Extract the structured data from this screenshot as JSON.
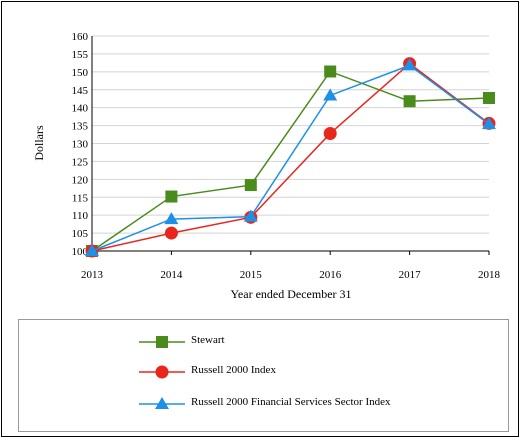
{
  "chart_data": {
    "type": "line",
    "x": [
      "2013",
      "2014",
      "2015",
      "2016",
      "2017",
      "2018"
    ],
    "xlabel": "Year ended December 31",
    "ylabel": "Dollars",
    "ylim": [
      100,
      160
    ],
    "yticks": [
      "100",
      "105",
      "110",
      "115",
      "120",
      "125",
      "130",
      "135",
      "140",
      "145",
      "150",
      "155",
      "160"
    ],
    "grid": "horizontal",
    "legend_position": "bottom",
    "series": [
      {
        "name": "Stewart",
        "values": [
          100,
          115.2,
          118.4,
          150.1,
          141.8,
          142.7
        ],
        "color": "#4a8c1c",
        "marker": "square"
      },
      {
        "name": "Russell 2000 Index",
        "values": [
          100,
          105,
          109.4,
          132.8,
          152.3,
          135.6
        ],
        "color": "#e8261c",
        "marker": "circle"
      },
      {
        "name": "Russell 2000 Financial Services Sector Index",
        "values": [
          100,
          108.9,
          109.6,
          143.4,
          151.8,
          135.4
        ],
        "color": "#1e90e6",
        "marker": "triangle"
      }
    ]
  }
}
